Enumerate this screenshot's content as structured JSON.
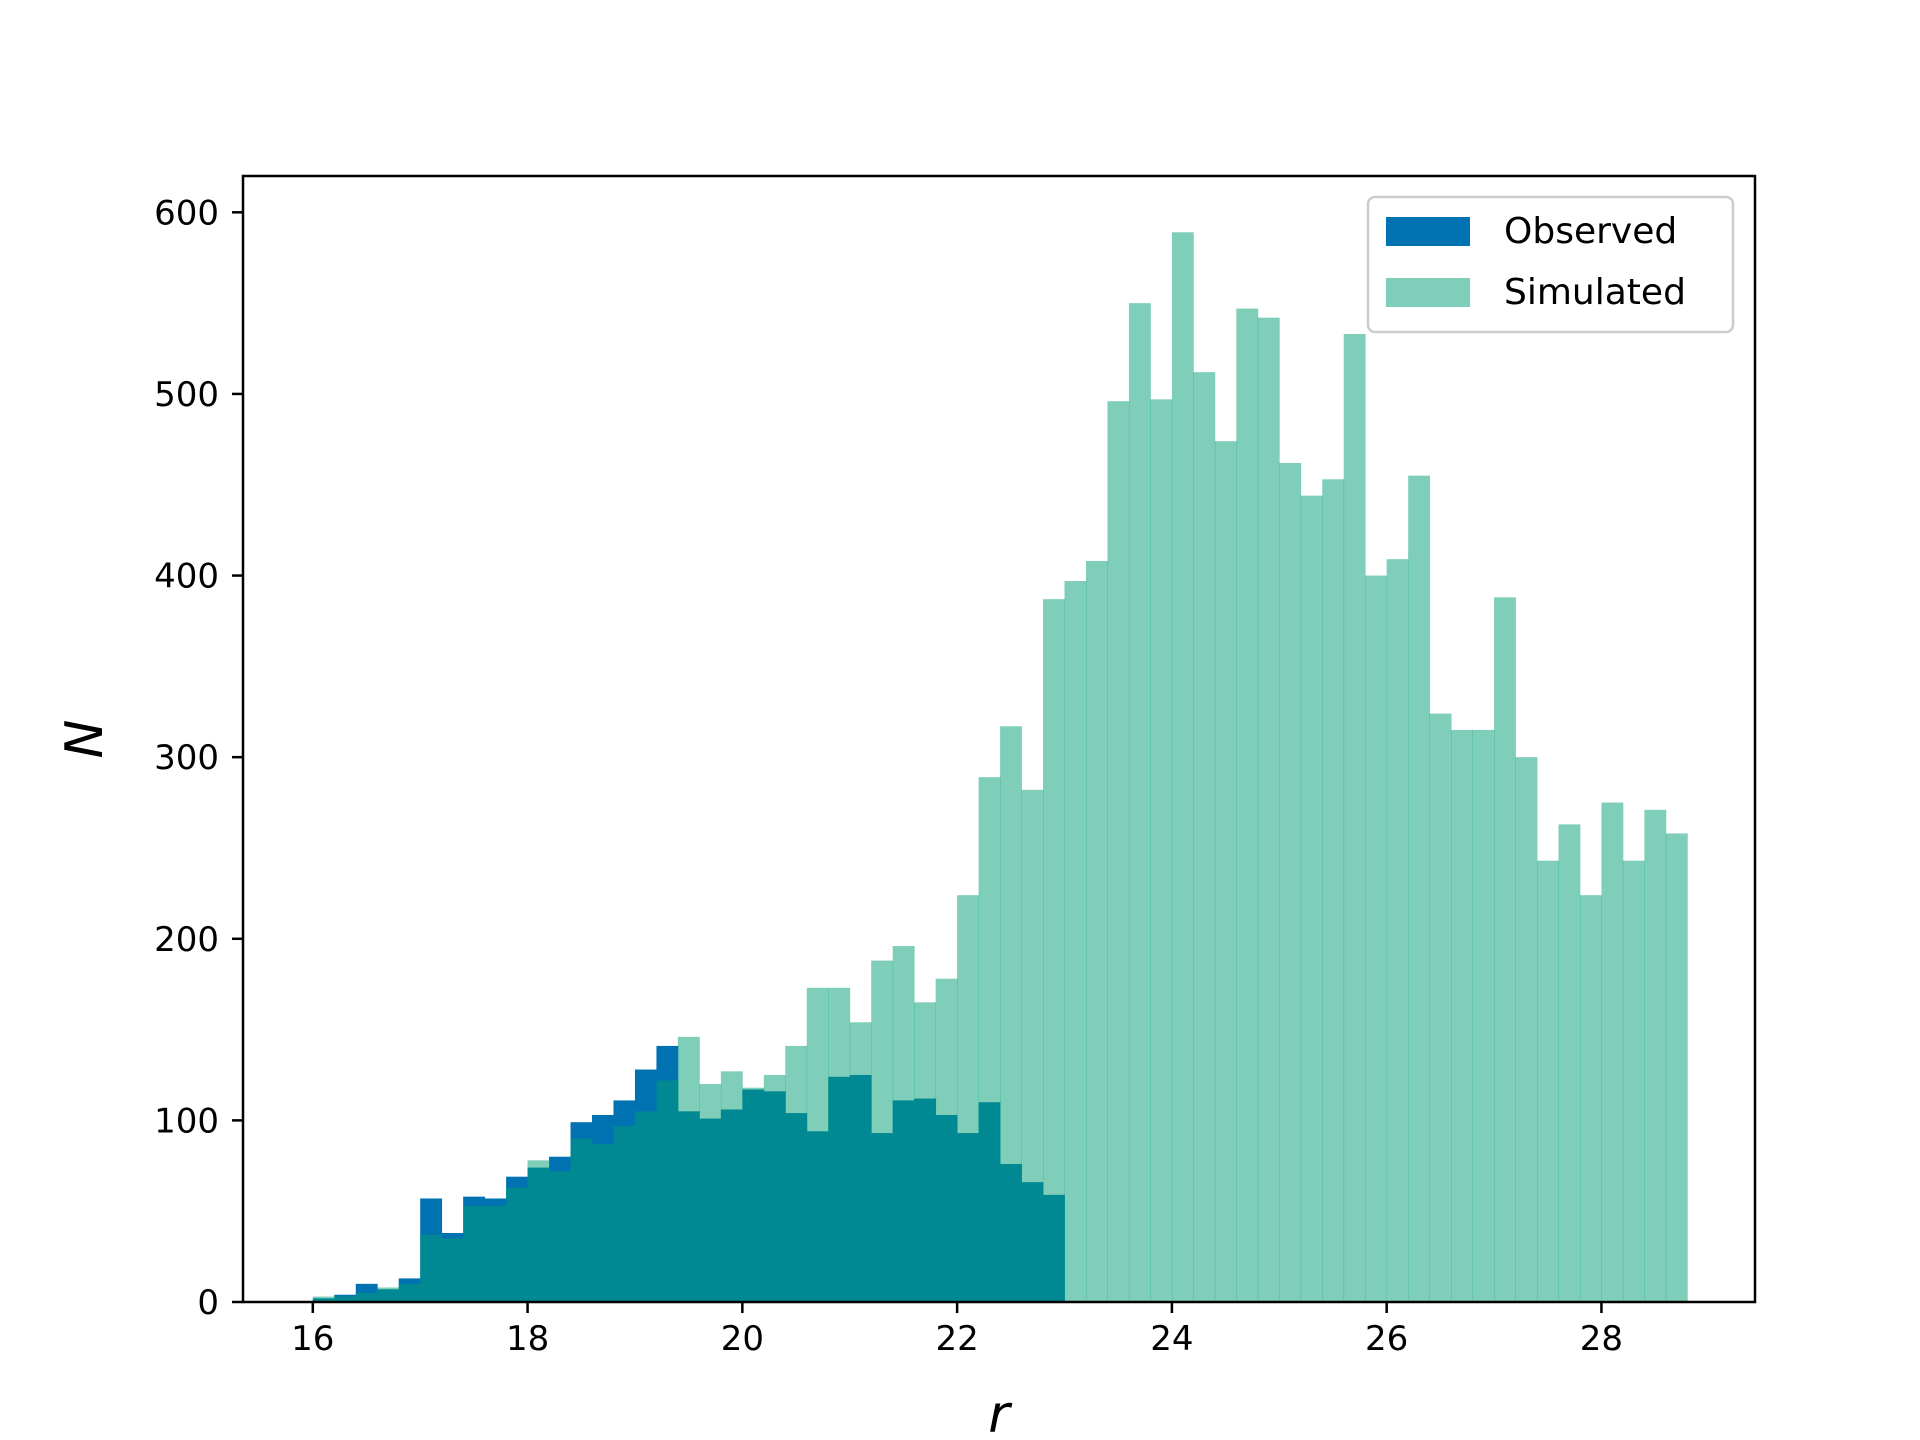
{
  "chart_data": {
    "type": "bar",
    "subtype": "overlapping-histogram",
    "title": "",
    "xlabel": "r",
    "ylabel": "N",
    "xlim": [
      15.35,
      29.43
    ],
    "ylim": [
      0,
      620
    ],
    "grid": false,
    "legend_position": "top-right",
    "x_ticks": [
      16,
      18,
      20,
      22,
      24,
      26,
      28
    ],
    "x_tick_labels": [
      "16",
      "18",
      "20",
      "22",
      "24",
      "26",
      "28"
    ],
    "y_ticks": [
      0,
      100,
      200,
      300,
      400,
      500,
      600
    ],
    "y_tick_labels": [
      "0",
      "100",
      "200",
      "300",
      "400",
      "500",
      "600"
    ],
    "bin_width": 0.2,
    "series": [
      {
        "name": "Observed",
        "color": "#0072b2",
        "alpha": 1.0,
        "bin_start": 16.0,
        "values": [
          2,
          4,
          10,
          7,
          13,
          57,
          38,
          58,
          57,
          69,
          74,
          80,
          99,
          103,
          111,
          128,
          141,
          105,
          101,
          106,
          117,
          116,
          104,
          94,
          124,
          125,
          93,
          111,
          112,
          103,
          93,
          110,
          76,
          66,
          59
        ]
      },
      {
        "name": "Simulated",
        "color": "#009e73",
        "alpha": 0.5,
        "bin_start": 16.0,
        "values": [
          3,
          3,
          5,
          8,
          10,
          37,
          35,
          53,
          53,
          63,
          78,
          72,
          90,
          87,
          97,
          105,
          122,
          146,
          120,
          127,
          118,
          125,
          141,
          173,
          173,
          154,
          188,
          196,
          165,
          178,
          224,
          289,
          317,
          282,
          387,
          397,
          408,
          496,
          550,
          497,
          589,
          512,
          474,
          547,
          542,
          462,
          444,
          453,
          533,
          400,
          409,
          455,
          324,
          315,
          315,
          388,
          300,
          243,
          263,
          224,
          275,
          243,
          271,
          258
        ]
      }
    ]
  }
}
